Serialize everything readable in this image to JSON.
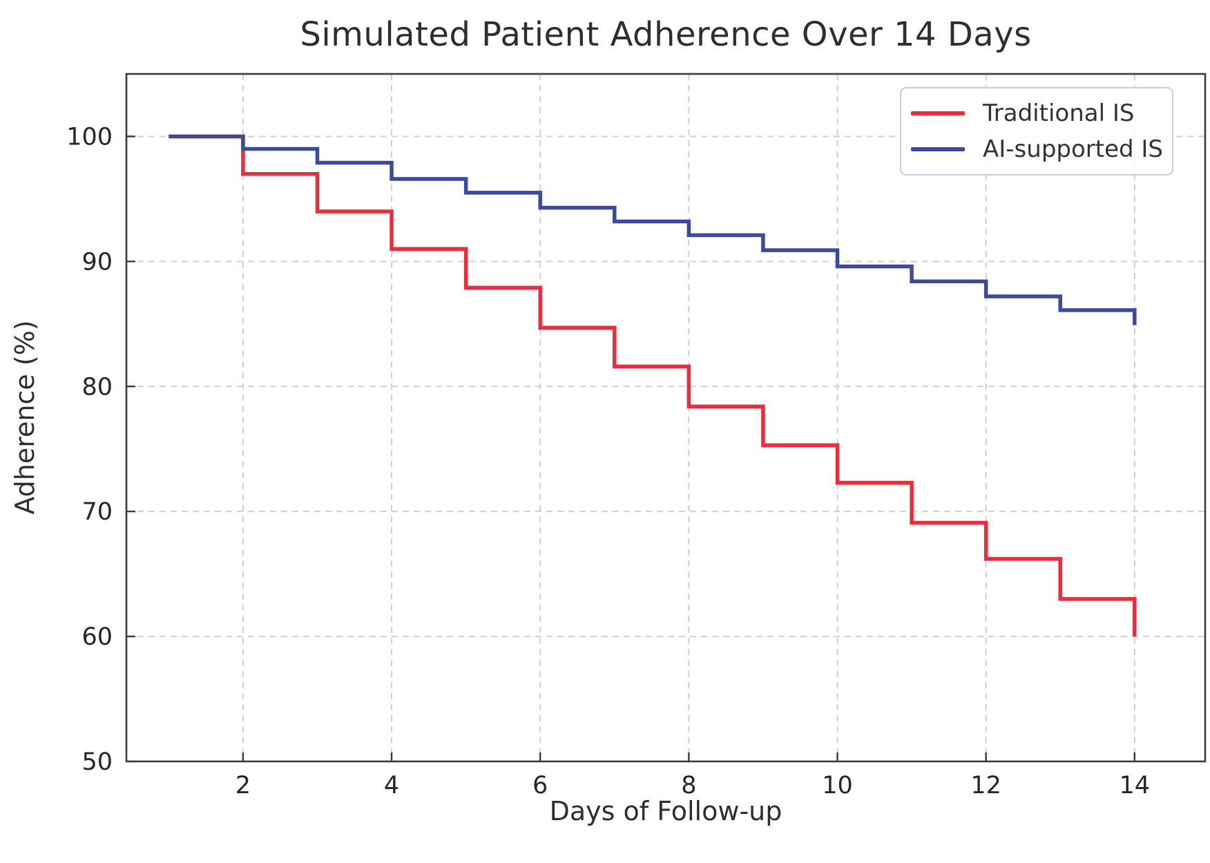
{
  "chart_data": {
    "type": "line",
    "subtype": "step-post",
    "title": "Simulated Patient Adherence Over 14 Days",
    "xlabel": "Days of Follow-up",
    "ylabel": "Adherence (%)",
    "x": [
      1,
      2,
      3,
      4,
      5,
      6,
      7,
      8,
      9,
      10,
      11,
      12,
      13,
      14
    ],
    "series": [
      {
        "name": "Traditional IS",
        "color": "#ee2b3a",
        "values": [
          100,
          97,
          94,
          91,
          87.9,
          84.7,
          81.6,
          78.4,
          75.3,
          72.3,
          69.1,
          66.2,
          63.0,
          60.0
        ]
      },
      {
        "name": "AI-supported IS",
        "color": "#3a4aa0",
        "values": [
          100,
          99,
          97.9,
          96.6,
          95.5,
          94.3,
          93.2,
          92.1,
          90.9,
          89.6,
          88.4,
          87.2,
          86.1,
          84.9
        ]
      }
    ],
    "x_ticks": [
      2,
      4,
      6,
      8,
      10,
      12,
      14
    ],
    "y_ticks": [
      50,
      60,
      70,
      80,
      90,
      100
    ],
    "xlim": [
      0.43,
      14.95
    ],
    "ylim": [
      50,
      105
    ],
    "grid": true,
    "grid_style": "dashed",
    "legend_position": "upper right",
    "style": {
      "grid_color": "#cccccc",
      "spine_color": "#3a3a3a",
      "tick_label_color": "#262626",
      "text_color": "#2e2e2e",
      "line_width": 5.5
    }
  }
}
